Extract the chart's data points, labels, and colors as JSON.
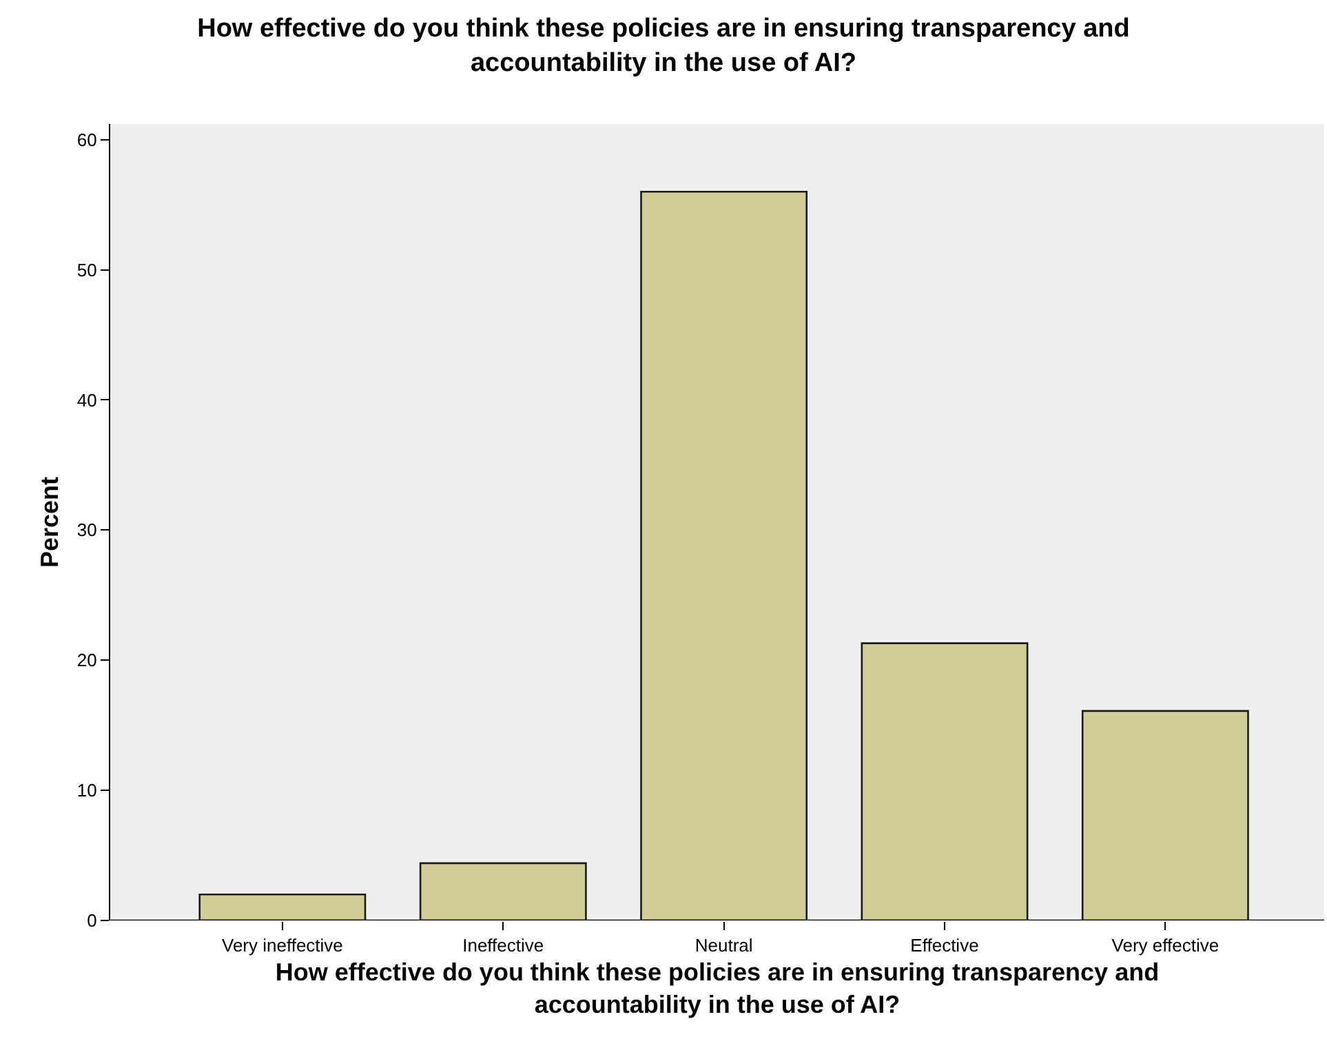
{
  "chart_data": {
    "type": "bar",
    "title": "How effective do you think these policies are in ensuring transparency and accountability in the use of AI?",
    "xlabel": "How effective do you think these policies are in ensuring transparency and accountability in the use of AI?",
    "ylabel": "Percent",
    "categories": [
      "Very ineffective",
      "Ineffective",
      "Neutral",
      "Effective",
      "Very effective"
    ],
    "values": [
      2.0,
      4.4,
      56.0,
      21.3,
      16.1
    ],
    "color": "#d2cc96",
    "ylim": [
      0,
      61.2
    ],
    "yticks": [
      0,
      10,
      20,
      30,
      40,
      50,
      60
    ],
    "grid": false
  }
}
